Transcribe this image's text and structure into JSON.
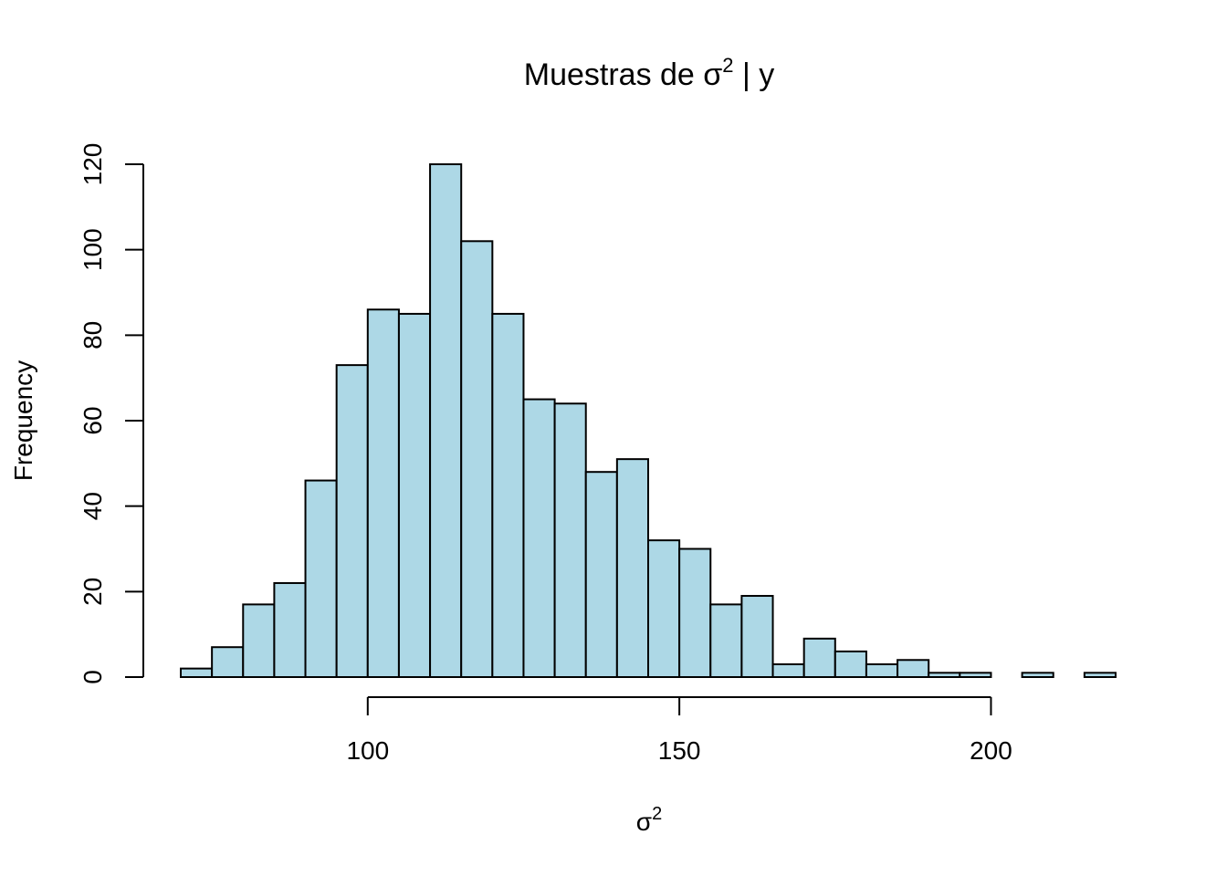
{
  "chart_data": {
    "type": "bar",
    "title": "Muestras de σ",
    "title_superscript": "2",
    "title_suffix": " | y",
    "xlabel": "σ",
    "xlabel_superscript": "2",
    "ylabel": "Frequency",
    "bar_color": "#add8e6",
    "edge_color": "#000000",
    "bin_width": 5,
    "xlim": [
      70,
      220
    ],
    "ylim": [
      0,
      120
    ],
    "x_ticks": [
      100,
      150,
      200
    ],
    "y_ticks": [
      0,
      20,
      40,
      60,
      80,
      100,
      120
    ],
    "grid": false,
    "bins": [
      {
        "start": 70,
        "end": 75,
        "count": 2
      },
      {
        "start": 75,
        "end": 80,
        "count": 7
      },
      {
        "start": 80,
        "end": 85,
        "count": 17
      },
      {
        "start": 85,
        "end": 90,
        "count": 22
      },
      {
        "start": 90,
        "end": 95,
        "count": 46
      },
      {
        "start": 95,
        "end": 100,
        "count": 73
      },
      {
        "start": 100,
        "end": 105,
        "count": 86
      },
      {
        "start": 105,
        "end": 110,
        "count": 85
      },
      {
        "start": 110,
        "end": 115,
        "count": 120
      },
      {
        "start": 115,
        "end": 120,
        "count": 102
      },
      {
        "start": 120,
        "end": 125,
        "count": 85
      },
      {
        "start": 125,
        "end": 130,
        "count": 65
      },
      {
        "start": 130,
        "end": 135,
        "count": 64
      },
      {
        "start": 135,
        "end": 140,
        "count": 48
      },
      {
        "start": 140,
        "end": 145,
        "count": 51
      },
      {
        "start": 145,
        "end": 150,
        "count": 32
      },
      {
        "start": 150,
        "end": 155,
        "count": 30
      },
      {
        "start": 155,
        "end": 160,
        "count": 17
      },
      {
        "start": 160,
        "end": 165,
        "count": 19
      },
      {
        "start": 165,
        "end": 170,
        "count": 3
      },
      {
        "start": 170,
        "end": 175,
        "count": 9
      },
      {
        "start": 175,
        "end": 180,
        "count": 6
      },
      {
        "start": 180,
        "end": 185,
        "count": 3
      },
      {
        "start": 185,
        "end": 190,
        "count": 4
      },
      {
        "start": 190,
        "end": 195,
        "count": 1
      },
      {
        "start": 195,
        "end": 200,
        "count": 1
      },
      {
        "start": 200,
        "end": 205,
        "count": 0
      },
      {
        "start": 205,
        "end": 210,
        "count": 1
      },
      {
        "start": 210,
        "end": 215,
        "count": 0
      },
      {
        "start": 215,
        "end": 220,
        "count": 1
      }
    ]
  }
}
